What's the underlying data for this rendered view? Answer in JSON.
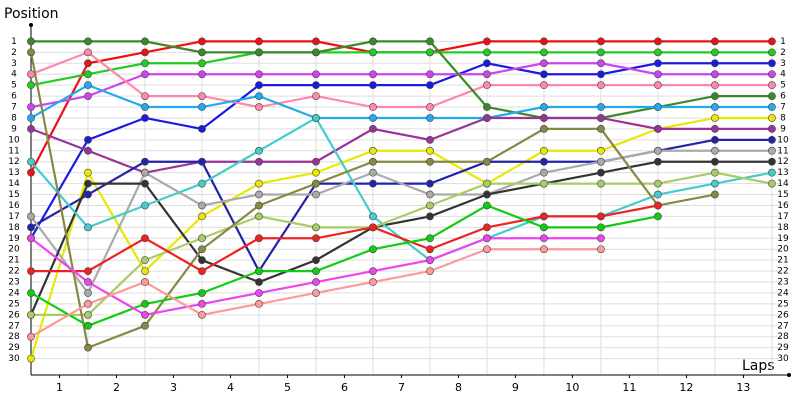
{
  "chart_data": {
    "type": "line",
    "ylabel": "Position",
    "xlabel": "Laps",
    "x": [
      0,
      1,
      2,
      3,
      4,
      5,
      6,
      7,
      8,
      9,
      10,
      11,
      12,
      13
    ],
    "xlim": [
      0,
      13.3
    ],
    "xticks": [
      {
        "value": 0.5,
        "label": "1"
      },
      {
        "value": 1.5,
        "label": "2"
      },
      {
        "value": 2.5,
        "label": "3"
      },
      {
        "value": 3.5,
        "label": "4"
      },
      {
        "value": 4.5,
        "label": "5"
      },
      {
        "value": 5.5,
        "label": "6"
      },
      {
        "value": 6.5,
        "label": "7"
      },
      {
        "value": 7.5,
        "label": "8"
      },
      {
        "value": 8.5,
        "label": "9"
      },
      {
        "value": 9.5,
        "label": "10"
      },
      {
        "value": 10.5,
        "label": "11"
      },
      {
        "value": 11.5,
        "label": "12"
      },
      {
        "value": 12.5,
        "label": "13"
      }
    ],
    "ylim": [
      31.5,
      -0.5
    ],
    "yticks": [
      1,
      2,
      3,
      4,
      5,
      6,
      7,
      8,
      9,
      10,
      11,
      12,
      13,
      14,
      15,
      16,
      17,
      18,
      19,
      20,
      21,
      22,
      23,
      24,
      25,
      26,
      27,
      28,
      29,
      30
    ],
    "grid": true,
    "series": [
      {
        "color": "#ee1111",
        "values": [
          13,
          3,
          2,
          1,
          1,
          1,
          2,
          2,
          1,
          1,
          1,
          1,
          1,
          1
        ]
      },
      {
        "color": "#22cc22",
        "values": [
          5,
          4,
          3,
          3,
          2,
          2,
          2,
          2,
          2,
          2,
          2,
          2,
          2,
          2
        ]
      },
      {
        "color": "#1a1ae0",
        "values": [
          19,
          10,
          8,
          9,
          5,
          5,
          5,
          5,
          3,
          4,
          4,
          3,
          3,
          3
        ]
      },
      {
        "color": "#cc44ee",
        "values": [
          7,
          6,
          4,
          4,
          4,
          4,
          4,
          4,
          4,
          3,
          3,
          4,
          4,
          4
        ]
      },
      {
        "color": "#ff88aa",
        "values": [
          4,
          2,
          6,
          6,
          7,
          6,
          7,
          7,
          5,
          5,
          5,
          5,
          5,
          5
        ]
      },
      {
        "color": "#3a8a2a",
        "values": [
          1,
          1,
          1,
          2,
          2,
          2,
          1,
          1,
          7,
          8,
          8,
          7,
          6,
          6
        ]
      },
      {
        "color": "#22aaee",
        "values": [
          8,
          5,
          7,
          7,
          6,
          8,
          8,
          8,
          8,
          7,
          7,
          7,
          7,
          7
        ]
      },
      {
        "color": "#e8e800",
        "values": [
          30,
          13,
          22,
          17,
          14,
          13,
          11,
          11,
          14,
          11,
          11,
          9,
          8,
          8
        ]
      },
      {
        "color": "#993399",
        "values": [
          9,
          11,
          13,
          12,
          12,
          12,
          9,
          10,
          8,
          8,
          8,
          9,
          9,
          9
        ]
      },
      {
        "color": "#2222aa",
        "values": [
          18,
          15,
          12,
          12,
          22,
          14,
          14,
          14,
          12,
          12,
          12,
          11,
          10,
          10
        ]
      },
      {
        "color": "#aaaaaa",
        "values": [
          17,
          24,
          13,
          16,
          15,
          15,
          13,
          15,
          15,
          13,
          12,
          11,
          11,
          11
        ]
      },
      {
        "color": "#333333",
        "values": [
          26,
          14,
          14,
          21,
          23,
          21,
          18,
          17,
          15,
          14,
          13,
          12,
          12,
          12
        ]
      },
      {
        "color": "#44cccc",
        "values": [
          12,
          18,
          16,
          14,
          11,
          8,
          17,
          21,
          19,
          17,
          17,
          15,
          14,
          13
        ]
      },
      {
        "color": "#aacc66",
        "values": [
          26,
          26,
          21,
          19,
          17,
          18,
          18,
          16,
          14,
          14,
          14,
          14,
          13,
          14
        ]
      },
      {
        "color": "#888844",
        "values": [
          2,
          29,
          27,
          20,
          16,
          14,
          12,
          12,
          12,
          9,
          9,
          16,
          15,
          null
        ]
      },
      {
        "color": "#ee2222",
        "values": [
          22,
          22,
          19,
          22,
          19,
          19,
          18,
          20,
          18,
          17,
          17,
          16,
          null,
          null
        ]
      },
      {
        "color": "#11cc11",
        "values": [
          24,
          27,
          25,
          24,
          22,
          22,
          20,
          19,
          16,
          18,
          18,
          17,
          null,
          null
        ]
      },
      {
        "color": "#ee44ee",
        "values": [
          19,
          23,
          26,
          25,
          24,
          23,
          22,
          21,
          19,
          19,
          19,
          null,
          null,
          null
        ]
      },
      {
        "color": "#ff9999",
        "values": [
          28,
          25,
          23,
          26,
          25,
          24,
          23,
          22,
          20,
          20,
          20,
          null,
          null,
          null
        ]
      }
    ]
  }
}
